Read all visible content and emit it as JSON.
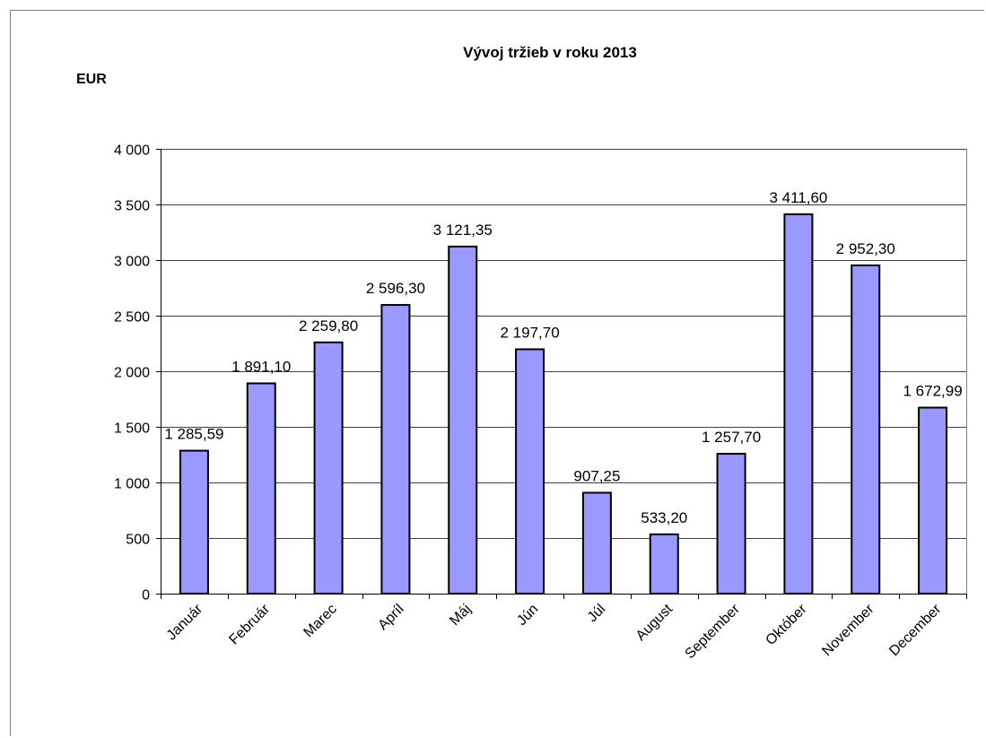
{
  "chart_data": {
    "type": "bar",
    "title": "Vývoj tržieb v roku 2013",
    "ylabel": "EUR",
    "xlabel": "",
    "categories": [
      "Január",
      "Február",
      "Marec",
      "Apríl",
      "Máj",
      "Jún",
      "Júl",
      "August",
      "September",
      "Október",
      "November",
      "December"
    ],
    "values": [
      1285.59,
      1891.1,
      2259.8,
      2596.3,
      3121.35,
      2197.7,
      907.25,
      533.2,
      1257.7,
      3411.6,
      2952.3,
      1672.99
    ],
    "data_labels": [
      "1 285,59",
      "1 891,10",
      "2 259,80",
      "2 596,30",
      "3 121,35",
      "2 197,70",
      "907,25",
      "533,20",
      "1 257,70",
      "3 411,60",
      "2 952,30",
      "1 672,99"
    ],
    "ylim": [
      0,
      4000
    ],
    "yticks": [
      0,
      500,
      1000,
      1500,
      2000,
      2500,
      3000,
      3500,
      4000
    ],
    "ytick_labels": [
      "0",
      "500",
      "1 000",
      "1 500",
      "2 000",
      "2 500",
      "3 000",
      "3 500",
      "4 000"
    ],
    "grid": true,
    "legend": "none",
    "colors": {
      "bar_fill": "#9999ff",
      "bar_stroke": "#000000",
      "grid": "#000000",
      "axis": "#000000",
      "text": "#000000"
    }
  }
}
